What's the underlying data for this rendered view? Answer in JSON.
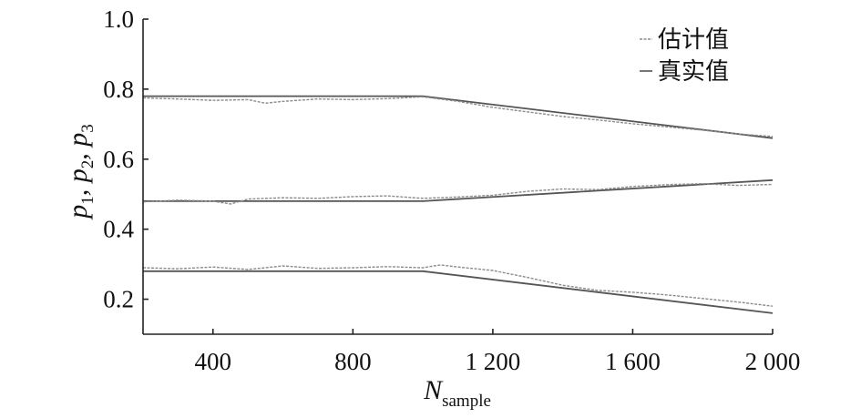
{
  "chart_data": {
    "type": "line",
    "xlabel_main": "N",
    "xlabel_sub": "sample",
    "ylabel_parts": [
      {
        "t": "p",
        "s": "1"
      },
      {
        "t": ", p",
        "s": "2"
      },
      {
        "t": ", p",
        "s": "3"
      }
    ],
    "xlim": [
      200,
      2000
    ],
    "ylim": [
      0.1,
      1.0
    ],
    "x_ticks": [
      400,
      800,
      1200,
      1600,
      2000
    ],
    "x_tick_labels": [
      "400",
      "800",
      "1 200",
      "1 600",
      "2 000"
    ],
    "y_ticks": [
      0.2,
      0.4,
      0.6,
      0.8,
      1.0
    ],
    "y_tick_labels": [
      "0.2",
      "0.4",
      "0.6",
      "0.8",
      "1.0"
    ],
    "legend_position": "top-right",
    "legend": [
      {
        "label": "估计值",
        "style": "estimated"
      },
      {
        "label": "真实值",
        "style": "true"
      }
    ],
    "series": [
      {
        "group": "p1",
        "style": "true",
        "color": "#555555",
        "x": [
          200,
          1000,
          2000
        ],
        "y": [
          0.78,
          0.78,
          0.66
        ]
      },
      {
        "group": "p1",
        "style": "estimated",
        "color": "#8c8c8c",
        "x": [
          200,
          300,
          400,
          500,
          550,
          600,
          700,
          800,
          900,
          1000,
          1100,
          1200,
          1300,
          1400,
          1500,
          1600,
          1700,
          1800,
          1900,
          2000
        ],
        "y": [
          0.775,
          0.772,
          0.768,
          0.77,
          0.76,
          0.765,
          0.772,
          0.77,
          0.773,
          0.778,
          0.765,
          0.748,
          0.735,
          0.722,
          0.712,
          0.701,
          0.692,
          0.683,
          0.672,
          0.665
        ]
      },
      {
        "group": "p2",
        "style": "true",
        "color": "#555555",
        "x": [
          200,
          1000,
          2000
        ],
        "y": [
          0.48,
          0.48,
          0.54
        ]
      },
      {
        "group": "p2",
        "style": "estimated",
        "color": "#8c8c8c",
        "x": [
          200,
          300,
          400,
          450,
          500,
          600,
          700,
          800,
          900,
          1000,
          1100,
          1200,
          1300,
          1400,
          1500,
          1600,
          1700,
          1800,
          1900,
          2000
        ],
        "y": [
          0.478,
          0.483,
          0.48,
          0.472,
          0.486,
          0.49,
          0.488,
          0.493,
          0.495,
          0.488,
          0.492,
          0.497,
          0.508,
          0.515,
          0.513,
          0.522,
          0.527,
          0.53,
          0.525,
          0.528
        ]
      },
      {
        "group": "p3",
        "style": "true",
        "color": "#555555",
        "x": [
          200,
          1000,
          2000
        ],
        "y": [
          0.28,
          0.28,
          0.16
        ]
      },
      {
        "group": "p3",
        "style": "estimated",
        "color": "#8c8c8c",
        "x": [
          200,
          300,
          400,
          500,
          600,
          700,
          800,
          900,
          1000,
          1050,
          1100,
          1200,
          1300,
          1400,
          1500,
          1600,
          1700,
          1800,
          1900,
          2000
        ],
        "y": [
          0.29,
          0.287,
          0.292,
          0.285,
          0.295,
          0.288,
          0.29,
          0.293,
          0.29,
          0.298,
          0.292,
          0.282,
          0.262,
          0.24,
          0.225,
          0.22,
          0.212,
          0.202,
          0.192,
          0.18
        ]
      }
    ]
  }
}
